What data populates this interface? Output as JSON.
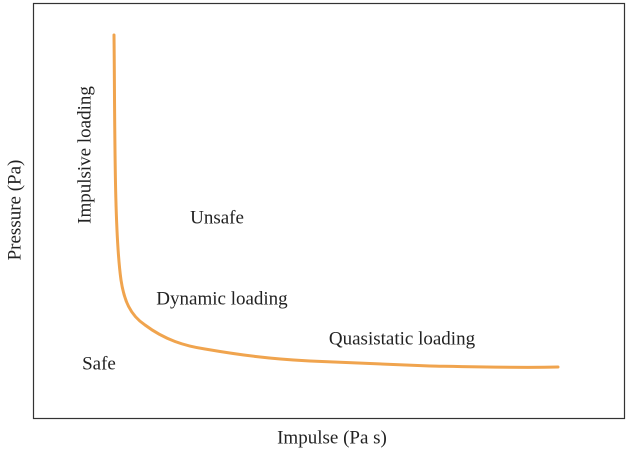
{
  "axes": {
    "x_label": "Impulse (Pa s)",
    "y_label": "Pressure (Pa)"
  },
  "regions": {
    "impulsive": "Impulsive loading",
    "unsafe": "Unsafe",
    "dynamic": "Dynamic loading",
    "quasistatic": "Quasistatic loading",
    "safe": "Safe"
  }
}
